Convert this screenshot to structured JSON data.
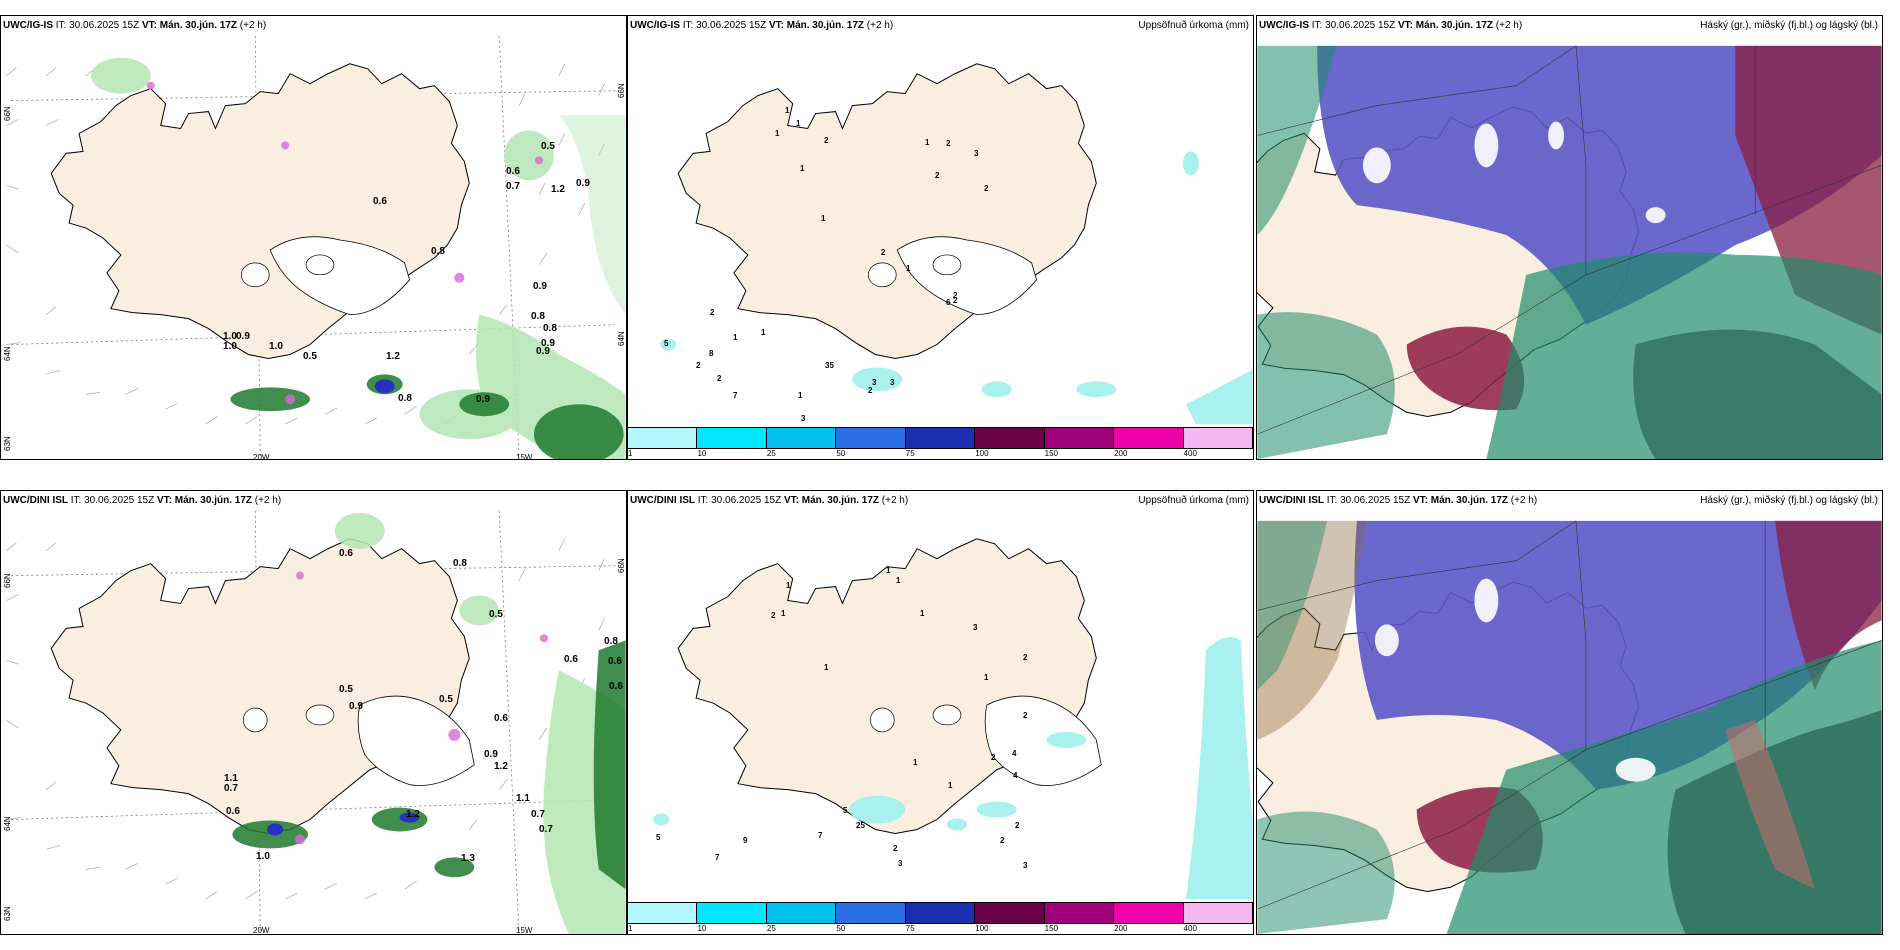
{
  "panels": {
    "p1": {
      "model": "UWC/IG-IS",
      "it_label": "IT:",
      "it_value": "30.06.2025 15Z",
      "vt_label": "VT:",
      "vt_value": "Mán. 30.jún. 17Z",
      "lead": "(+2 h)",
      "right": ""
    },
    "p2": {
      "model": "UWC/IG-IS",
      "it_label": "IT:",
      "it_value": "30.06.2025 15Z",
      "vt_label": "VT:",
      "vt_value": "Mán. 30.jún. 17Z",
      "lead": "(+2 h)",
      "right": "Uppsöfnuð úrkoma (mm)"
    },
    "p3": {
      "model": "UWC/IG-IS",
      "it_label": "IT:",
      "it_value": "30.06.2025 15Z",
      "vt_label": "VT:",
      "vt_value": "Mán. 30.jún. 17Z",
      "lead": "(+2 h)",
      "right": "Háský (gr.), miðský (fj.bl.) og lágský (bl.)"
    },
    "p4": {
      "model": "UWC/DINI ISL",
      "it_label": "IT:",
      "it_value": "30.06.2025 15Z",
      "vt_label": "VT:",
      "vt_value": "Mán. 30.jún. 17Z",
      "lead": "(+2 h)",
      "right": ""
    },
    "p5": {
      "model": "UWC/DINI ISL",
      "it_label": "IT:",
      "it_value": "30.06.2025 15Z",
      "vt_label": "VT:",
      "vt_value": "Mán. 30.jún. 17Z",
      "lead": "(+2 h)",
      "right": "Uppsöfnuð úrkoma (mm)"
    },
    "p6": {
      "model": "UWC/DINI ISL",
      "it_label": "IT:",
      "it_value": "30.06.2025 15Z",
      "vt_label": "VT:",
      "vt_value": "Mán. 30.jún. 17Z",
      "lead": "(+2 h)",
      "right": "Háský (gr.), miðský (fj.bl.) og lágský (bl.)"
    }
  },
  "axes": {
    "lat66": "66N",
    "lat64": "64N",
    "lat63": "63N",
    "lon20": "20W",
    "lon15": "15W"
  },
  "legend": {
    "labels": [
      "1",
      "10",
      "25",
      "50",
      "75",
      "100",
      "150",
      "200",
      "400"
    ],
    "colors": [
      "#b3f7ff",
      "#00e7ff",
      "#00c0ef",
      "#2a6fe6",
      "#1b2fb0",
      "#6a0045",
      "#a0007a",
      "#ee00aa",
      "#f5b8f0"
    ]
  },
  "colors": {
    "land": "#faeee0",
    "precip_light": "#a9f1ee",
    "cloud_high": "#5a57c8",
    "cloud_mid": "#8b1c3f",
    "cloud_low": "#1f8c6b",
    "green_light": "#b3e6b3",
    "green_dark": "#1f7a2e"
  },
  "values": {
    "p1": [
      "0.5",
      "0.6",
      "0.7",
      "1.2",
      "0.9",
      "0.6",
      "0.8",
      "0.9",
      "0.8",
      "1.0",
      "0.9",
      "0.9",
      "1.0",
      "1.0",
      "0.5",
      "1.2",
      "0.8",
      "0.9",
      "0.9",
      "0.8"
    ],
    "p2": [
      "1",
      "1",
      "1",
      "2",
      "1",
      "1",
      "2",
      "3",
      "2",
      "2",
      "1",
      "2",
      "1",
      "2",
      "3",
      "6",
      "2",
      "2",
      "1",
      "5",
      "2",
      "8",
      "1",
      "2",
      "7",
      "35",
      "2",
      "3",
      "1",
      "3",
      "2"
    ],
    "p4": [
      "0.6",
      "0.8",
      "0.5",
      "0.6",
      "0.8",
      "0.6",
      "0.6",
      "0.5",
      "0.9",
      "0.5",
      "0.6",
      "1.2",
      "0.9",
      "1.1",
      "0.7",
      "0.6",
      "1.1",
      "0.7",
      "0.7",
      "1.2",
      "1.0",
      "1.3"
    ],
    "p5": [
      "1",
      "1",
      "1",
      "2",
      "1",
      "1",
      "3",
      "2",
      "1",
      "2",
      "4",
      "2",
      "4",
      "2",
      "2",
      "1",
      "1",
      "5",
      "25",
      "7",
      "7",
      "9",
      "5",
      "2",
      "3",
      "3",
      "1"
    ]
  }
}
